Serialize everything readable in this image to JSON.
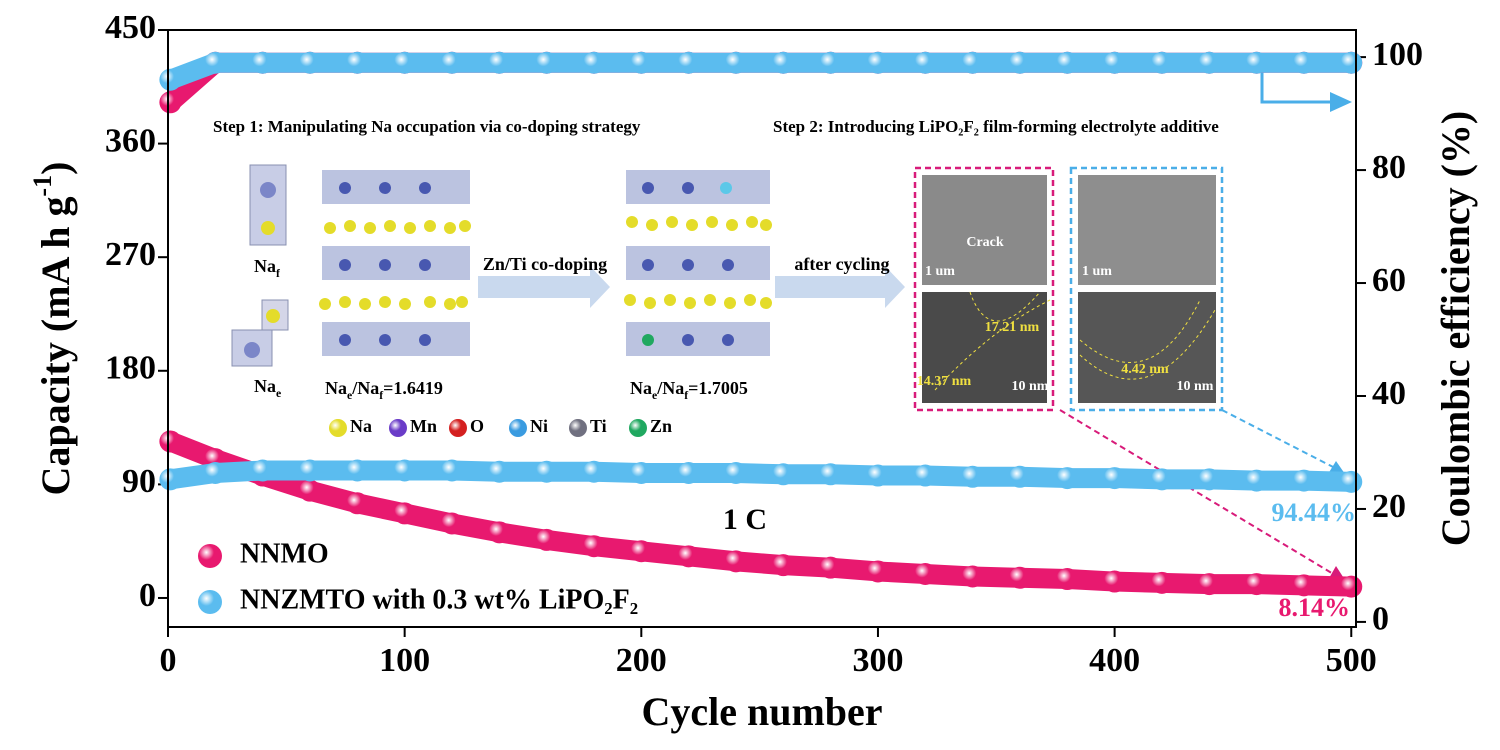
{
  "chart_data": {
    "type": "scatter",
    "x_label": "Cycle number",
    "y_label_parts": [
      "Capacity (mA h g",
      "-1",
      ")"
    ],
    "y2_label": "Coulombic efficiency (%)",
    "x": [
      1,
      20,
      40,
      60,
      80,
      100,
      120,
      140,
      160,
      180,
      200,
      220,
      240,
      260,
      280,
      300,
      320,
      340,
      360,
      380,
      400,
      420,
      440,
      460,
      480,
      500
    ],
    "xlim": [
      0,
      502
    ],
    "xticks": [
      0,
      100,
      200,
      300,
      400,
      500
    ],
    "ylim": [
      -23,
      450
    ],
    "yticks": [
      0,
      90,
      180,
      270,
      360,
      450
    ],
    "y2lim": [
      -0.9,
      104.8
    ],
    "y2ticks": [
      0,
      20,
      40,
      60,
      80,
      100
    ],
    "series": [
      {
        "name": "NNMO",
        "color": "#e8196f",
        "values": [
          124,
          110,
          97,
          85,
          75,
          67,
          59,
          52,
          46,
          41,
          37,
          33,
          29,
          26,
          24,
          21,
          19,
          17,
          16,
          15,
          13,
          12,
          11,
          11,
          10,
          9
        ]
      },
      {
        "name": "NNZMTO with 0.3 wt% LiPO₂F₂",
        "color": "#5bbcef",
        "values": [
          94,
          99,
          101,
          101,
          101,
          101,
          101,
          100,
          100,
          100,
          99,
          99,
          99,
          98,
          98,
          97,
          97,
          96,
          96,
          95,
          95,
          94,
          94,
          93,
          93,
          92
        ]
      },
      {
        "color": "#e8196f",
        "axis": "y2",
        "values": [
          92,
          99,
          99,
          99,
          99,
          99,
          99,
          99,
          99,
          99,
          99,
          99,
          99,
          99,
          99,
          99,
          99,
          99,
          99,
          99,
          99,
          99,
          99,
          99,
          99,
          99
        ]
      },
      {
        "color": "#5bbcef",
        "axis": "y2",
        "values": [
          96,
          99,
          99,
          99,
          99,
          99,
          99,
          99,
          99,
          99,
          99,
          99,
          99,
          99,
          99,
          99,
          99,
          99,
          99,
          99,
          99,
          99,
          99,
          99,
          99,
          99
        ]
      }
    ],
    "annotations": {
      "rate": "1 C",
      "retention_blue": "94.44%",
      "retention_pink": "8.14%"
    },
    "legend": "lower left"
  },
  "inset": {
    "step1": "Step 1: Manipulating Na occupation via co-doping strategy",
    "step2": "Step 2: Introducing LiPO₂F₂ film-forming electrolyte additive",
    "arrow1": "Zn/Ti co-doping",
    "arrow2": "after cycling",
    "na_f": [
      "Na",
      "f"
    ],
    "na_e": [
      "Na",
      "e"
    ],
    "ratio_0": [
      "Na",
      "e",
      "/Na",
      "f",
      "=1.6419"
    ],
    "ratio_1": [
      "Na",
      "e",
      "/Na",
      "f",
      "=1.7005"
    ],
    "elements": [
      {
        "name": "Na",
        "color": "#e4dc2a"
      },
      {
        "name": "Mn",
        "color": "#6a3cc8"
      },
      {
        "name": "O",
        "color": "#d42020"
      },
      {
        "name": "Ni",
        "color": "#3a9be0"
      },
      {
        "name": "Ti",
        "color": "#707080"
      },
      {
        "name": "Zn",
        "color": "#20a860"
      }
    ],
    "crack": "Crack",
    "scale_um": [
      "1 um",
      "1 um"
    ],
    "scale_nm": [
      "10 nm",
      "10 nm"
    ],
    "thick": [
      "17.21 nm",
      "14.37 nm",
      "4.42 nm"
    ]
  }
}
